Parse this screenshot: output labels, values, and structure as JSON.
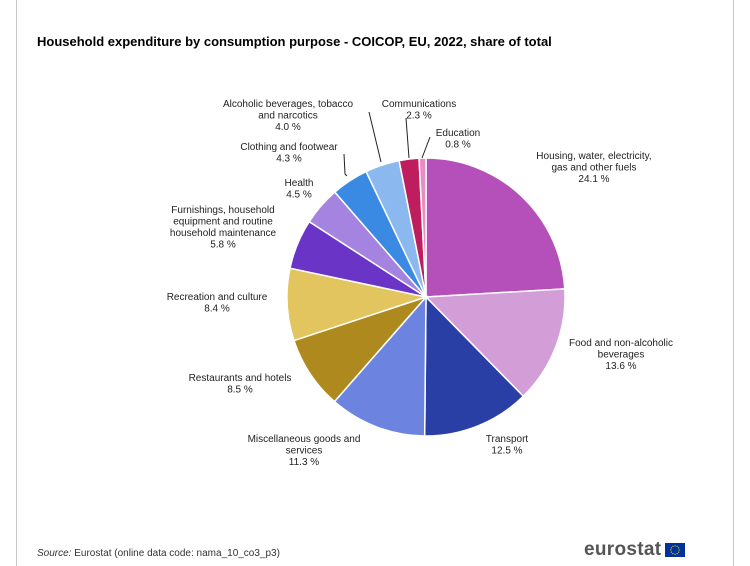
{
  "title": "Household expenditure by consumption purpose - COICOP, EU, 2022, share of total",
  "source": {
    "label": "Source:",
    "text": "Eurostat (online data code: nama_10_co3_p3)"
  },
  "logo": {
    "text": "eurostat"
  },
  "chart_data": {
    "type": "pie",
    "title": "Household expenditure by consumption purpose - COICOP, EU, 2022, share of total",
    "unit": "%",
    "slices": [
      {
        "label": [
          "Housing, water, electricity,",
          "gas and other fuels"
        ],
        "value": 24.1,
        "value_text": "24.1 %",
        "color": "#B54FB9"
      },
      {
        "label": [
          "Food and non-alcoholic",
          "beverages"
        ],
        "value": 13.6,
        "value_text": "13.6 %",
        "color": "#D39ED8"
      },
      {
        "label": [
          "Transport"
        ],
        "value": 12.5,
        "value_text": "12.5 %",
        "color": "#2A3FA5"
      },
      {
        "label": [
          "Miscellaneous goods and",
          "services"
        ],
        "value": 11.3,
        "value_text": "11.3 %",
        "color": "#6C84E0"
      },
      {
        "label": [
          "Restaurants and hotels"
        ],
        "value": 8.5,
        "value_text": "8.5 %",
        "color": "#AE8A1E"
      },
      {
        "label": [
          "Recreation and culture"
        ],
        "value": 8.4,
        "value_text": "8.4 %",
        "color": "#E2C55E"
      },
      {
        "label": [
          "Furnishings, household",
          "equipment and routine",
          "household maintenance"
        ],
        "value": 5.8,
        "value_text": "5.8 %",
        "color": "#6A34C6"
      },
      {
        "label": [
          "Health"
        ],
        "value": 4.5,
        "value_text": "4.5 %",
        "color": "#A583E0"
      },
      {
        "label": [
          "Clothing and footwear"
        ],
        "value": 4.3,
        "value_text": "4.3 %",
        "color": "#3A8AE4"
      },
      {
        "label": [
          "Alcoholic beverages,  tobacco",
          "and narcotics"
        ],
        "value": 4.0,
        "value_text": "4.0 %",
        "color": "#8BB8EE"
      },
      {
        "label": [
          "Communications"
        ],
        "value": 2.3,
        "value_text": "2.3 %",
        "color": "#BE1E5E"
      },
      {
        "label": [
          "Education"
        ],
        "value": 0.8,
        "value_text": "0.8 %",
        "color": "#E88CC4"
      }
    ]
  }
}
